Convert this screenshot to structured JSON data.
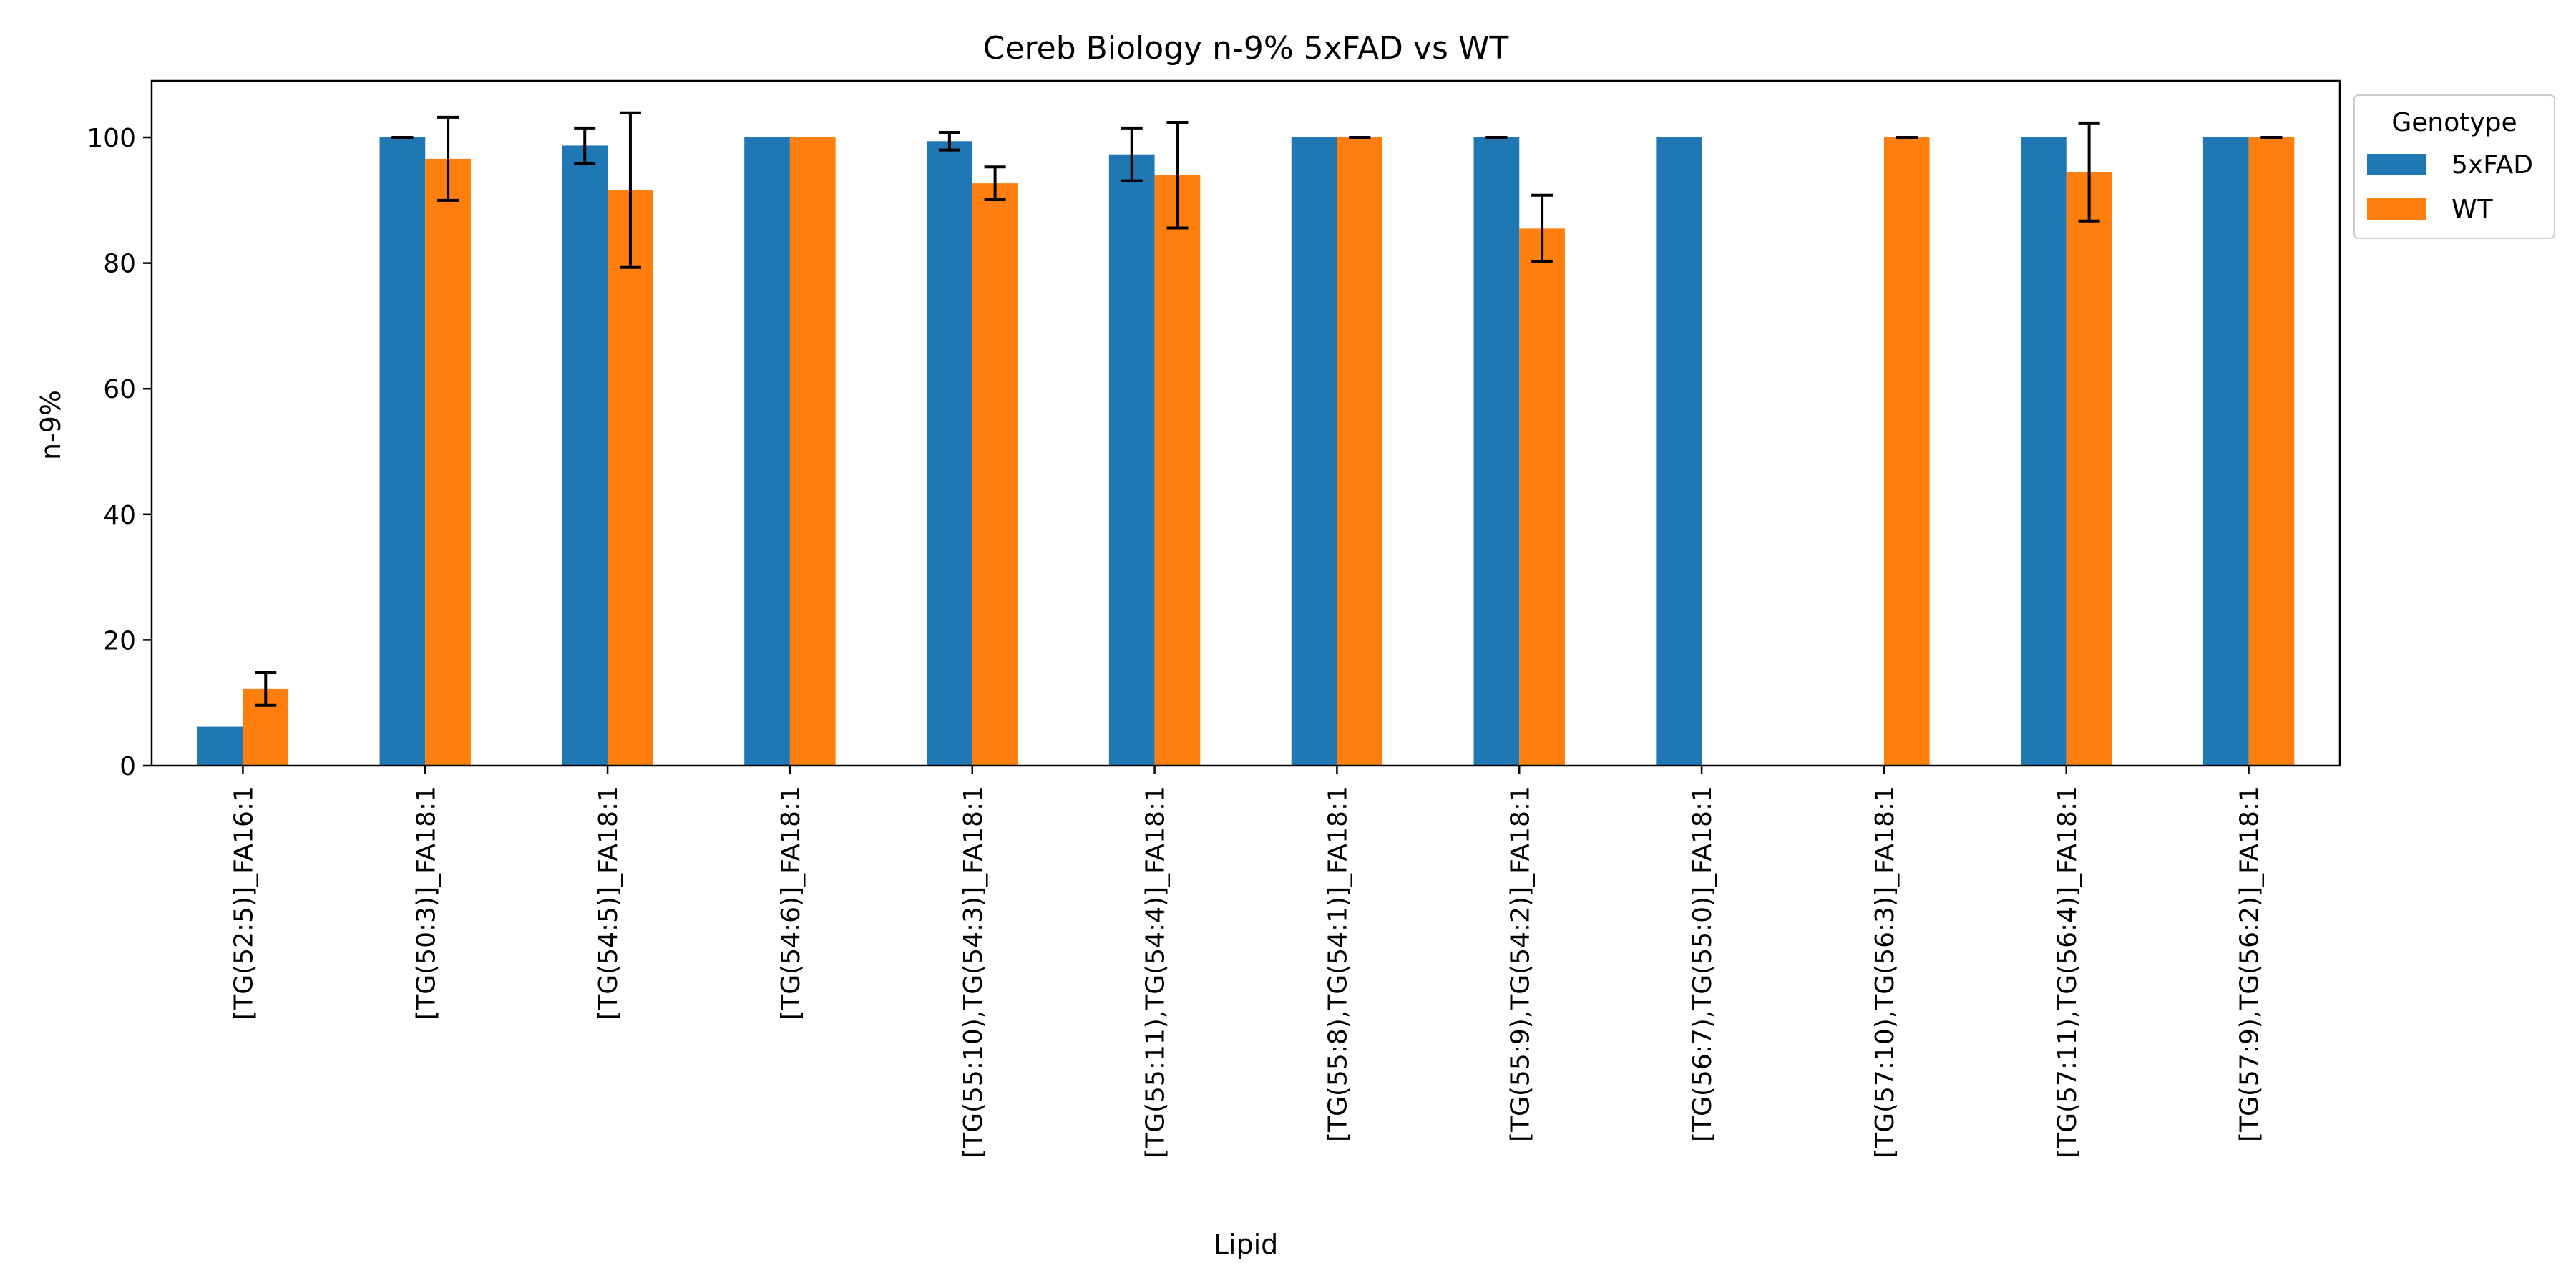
{
  "chart_data": {
    "type": "bar",
    "title": "Cereb Biology n-9% 5xFAD vs WT",
    "xlabel": "Lipid",
    "ylabel": "n-9%",
    "ylim": [
      0,
      109
    ],
    "yticks": [
      0,
      20,
      40,
      60,
      80,
      100
    ],
    "grid": false,
    "legend": {
      "title": "Genotype",
      "placement": "outside-top-right"
    },
    "categories": [
      "[TG(52:5)]_FA16:1",
      "[TG(50:3)]_FA18:1",
      "[TG(54:5)]_FA18:1",
      "[TG(54:6)]_FA18:1",
      "[TG(55:10),TG(54:3)]_FA18:1",
      "[TG(55:11),TG(54:4)]_FA18:1",
      "[TG(55:8),TG(54:1)]_FA18:1",
      "[TG(55:9),TG(54:2)]_FA18:1",
      "[TG(56:7),TG(55:0)]_FA18:1",
      "[TG(57:10),TG(56:3)]_FA18:1",
      "[TG(57:11),TG(56:4)]_FA18:1",
      "[TG(57:9),TG(56:2)]_FA18:1"
    ],
    "series": [
      {
        "name": "5xFAD",
        "color": "#1f77b4",
        "values": [
          6.2,
          100,
          98.7,
          100,
          99.4,
          97.3,
          100,
          100,
          100,
          null,
          100,
          100
        ],
        "errors": [
          null,
          0,
          2.8,
          null,
          1.4,
          4.2,
          null,
          0,
          null,
          null,
          null,
          null
        ]
      },
      {
        "name": "WT",
        "color": "#ff7f0e",
        "values": [
          12.2,
          96.6,
          91.6,
          100,
          92.7,
          94.0,
          100,
          85.5,
          null,
          100,
          94.5,
          100
        ],
        "errors": [
          2.6,
          6.6,
          12.3,
          null,
          2.6,
          8.4,
          0,
          5.3,
          null,
          0,
          7.8,
          0
        ]
      }
    ]
  }
}
